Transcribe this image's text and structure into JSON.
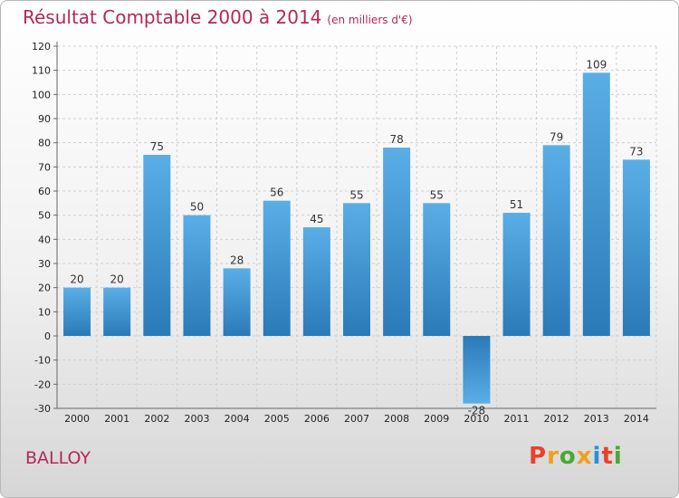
{
  "header": {
    "title": "Résultat Comptable 2000 à 2014",
    "subtitle": "(en milliers d'€)"
  },
  "footer": {
    "commune": "BALLOY",
    "logo_text": "Proxiti"
  },
  "colors": {
    "title": "#b5265a",
    "bar_light": "#5aaee6",
    "bar_dark": "#2a7ab8",
    "grid": "#cfcfcf",
    "logo_letters": [
      "#e8432a",
      "#f0a019",
      "#4aa832",
      "#f0a019",
      "#2a8fd6",
      "#e8432a",
      "#4aa832"
    ]
  },
  "chart_data": {
    "type": "bar",
    "categories": [
      "2000",
      "2001",
      "2002",
      "2003",
      "2004",
      "2005",
      "2006",
      "2007",
      "2008",
      "2009",
      "2010",
      "2011",
      "2012",
      "2013",
      "2014"
    ],
    "values": [
      20,
      20,
      75,
      50,
      28,
      56,
      45,
      55,
      78,
      55,
      -28,
      51,
      79,
      109,
      73
    ],
    "ylim": [
      -30,
      120
    ],
    "yticks": [
      -30,
      -20,
      -10,
      0,
      10,
      20,
      30,
      40,
      50,
      60,
      70,
      80,
      90,
      100,
      110,
      120
    ],
    "grid": true,
    "title": "Résultat Comptable 2000 à 2014",
    "xlabel": "",
    "ylabel": ""
  }
}
